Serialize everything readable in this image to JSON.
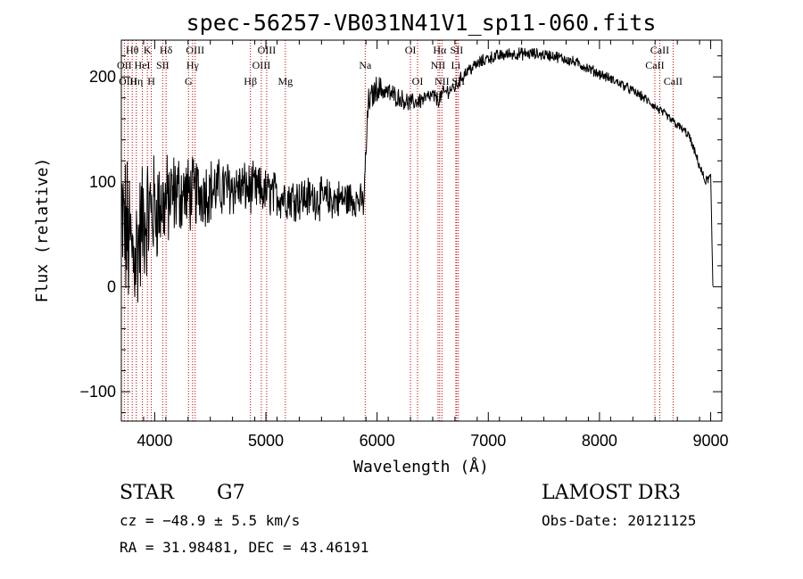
{
  "chart_data": {
    "type": "line",
    "title": "spec-56257-VB031N41V1_sp11-060.fits",
    "xlabel": "Wavelength (Å)",
    "ylabel": "Flux (relative)",
    "xlim": [
      3700,
      9100
    ],
    "ylim": [
      -128,
      235
    ],
    "xticks": [
      4000,
      5000,
      6000,
      7000,
      8000,
      9000
    ],
    "yticks": [
      -100,
      0,
      100,
      200
    ],
    "xtick_labels": [
      "4000",
      "5000",
      "6000",
      "7000",
      "8000",
      "9000"
    ],
    "ytick_labels": [
      "−100",
      "0",
      "100",
      "200"
    ],
    "grid": false,
    "series": [
      {
        "name": "flux",
        "color": "#000000",
        "anchors": [
          [
            3700,
            60
          ],
          [
            3750,
            50
          ],
          [
            3800,
            30
          ],
          [
            3850,
            40
          ],
          [
            3900,
            65
          ],
          [
            3950,
            70
          ],
          [
            4000,
            75
          ],
          [
            4100,
            80
          ],
          [
            4200,
            90
          ],
          [
            4300,
            88
          ],
          [
            4500,
            92
          ],
          [
            4700,
            95
          ],
          [
            4900,
            93
          ],
          [
            5000,
            90
          ],
          [
            5200,
            85
          ],
          [
            5400,
            85
          ],
          [
            5600,
            83
          ],
          [
            5800,
            84
          ],
          [
            5880,
            80
          ],
          [
            5920,
            175
          ],
          [
            6000,
            190
          ],
          [
            6100,
            185
          ],
          [
            6200,
            180
          ],
          [
            6300,
            175
          ],
          [
            6400,
            178
          ],
          [
            6500,
            182
          ],
          [
            6550,
            178
          ],
          [
            6600,
            185
          ],
          [
            6700,
            190
          ],
          [
            6800,
            205
          ],
          [
            6900,
            212
          ],
          [
            7000,
            218
          ],
          [
            7200,
            222
          ],
          [
            7400,
            222
          ],
          [
            7600,
            220
          ],
          [
            7800,
            213
          ],
          [
            8000,
            203
          ],
          [
            8200,
            193
          ],
          [
            8400,
            180
          ],
          [
            8600,
            163
          ],
          [
            8800,
            145
          ],
          [
            8950,
            100
          ],
          [
            9000,
            105
          ],
          [
            9020,
            0
          ]
        ],
        "noise_profile": [
          [
            3700,
            70
          ],
          [
            3900,
            55
          ],
          [
            4100,
            40
          ],
          [
            4300,
            32
          ],
          [
            4600,
            25
          ],
          [
            5000,
            20
          ],
          [
            5400,
            18
          ],
          [
            5800,
            16
          ],
          [
            5920,
            12
          ],
          [
            6200,
            8
          ],
          [
            6700,
            6
          ],
          [
            7500,
            5
          ],
          [
            8500,
            4
          ],
          [
            9000,
            4
          ]
        ]
      }
    ],
    "spectral_lines": [
      {
        "label": "Hθ",
        "wavelength": 3798,
        "row": 0
      },
      {
        "label": "OII",
        "wavelength": 3727,
        "row": 1
      },
      {
        "label": "OIII",
        "wavelength": 3760,
        "row": 2
      },
      {
        "label": "K",
        "wavelength": 3934,
        "row": 0
      },
      {
        "label": "H",
        "wavelength": 3969,
        "row": 2
      },
      {
        "label": "Hη",
        "wavelength": 3835,
        "row": 2
      },
      {
        "label": "HeI",
        "wavelength": 3889,
        "row": 1
      },
      {
        "label": "SII",
        "wavelength": 4072,
        "row": 1
      },
      {
        "label": "Hδ",
        "wavelength": 4102,
        "row": 0
      },
      {
        "label": "OIII",
        "wavelength": 4364,
        "row": 0
      },
      {
        "label": "Hγ",
        "wavelength": 4341,
        "row": 1
      },
      {
        "label": "G",
        "wavelength": 4304,
        "row": 2
      },
      {
        "label": "Hβ",
        "wavelength": 4861,
        "row": 2
      },
      {
        "label": "OIII",
        "wavelength": 5007,
        "row": 0
      },
      {
        "label": "OIII",
        "wavelength": 4959,
        "row": 1
      },
      {
        "label": "Mg",
        "wavelength": 5175,
        "row": 2
      },
      {
        "label": "Na",
        "wavelength": 5893,
        "row": 1
      },
      {
        "label": "OI",
        "wavelength": 6300,
        "row": 0
      },
      {
        "label": "OI",
        "wavelength": 6364,
        "row": 2
      },
      {
        "label": "Hα",
        "wavelength": 6563,
        "row": 0
      },
      {
        "label": "NII",
        "wavelength": 6548,
        "row": 1
      },
      {
        "label": "NII",
        "wavelength": 6583,
        "row": 2
      },
      {
        "label": "SII",
        "wavelength": 6716,
        "row": 0
      },
      {
        "label": "Li",
        "wavelength": 6708,
        "row": 1
      },
      {
        "label": "SII",
        "wavelength": 6731,
        "row": 2
      },
      {
        "label": "CaII",
        "wavelength": 8542,
        "row": 0
      },
      {
        "label": "CaII",
        "wavelength": 8498,
        "row": 1
      },
      {
        "label": "CaII",
        "wavelength": 8662,
        "row": 2
      }
    ],
    "line_color": "#c00000"
  },
  "info": {
    "class": "STAR",
    "subclass": "G7",
    "survey": "LAMOST DR3",
    "cz": "cz = −48.9 ± 5.5 km/s",
    "obs_date": "Obs-Date: 20121125",
    "coords": "RA =  31.98481, DEC =  43.46191"
  }
}
